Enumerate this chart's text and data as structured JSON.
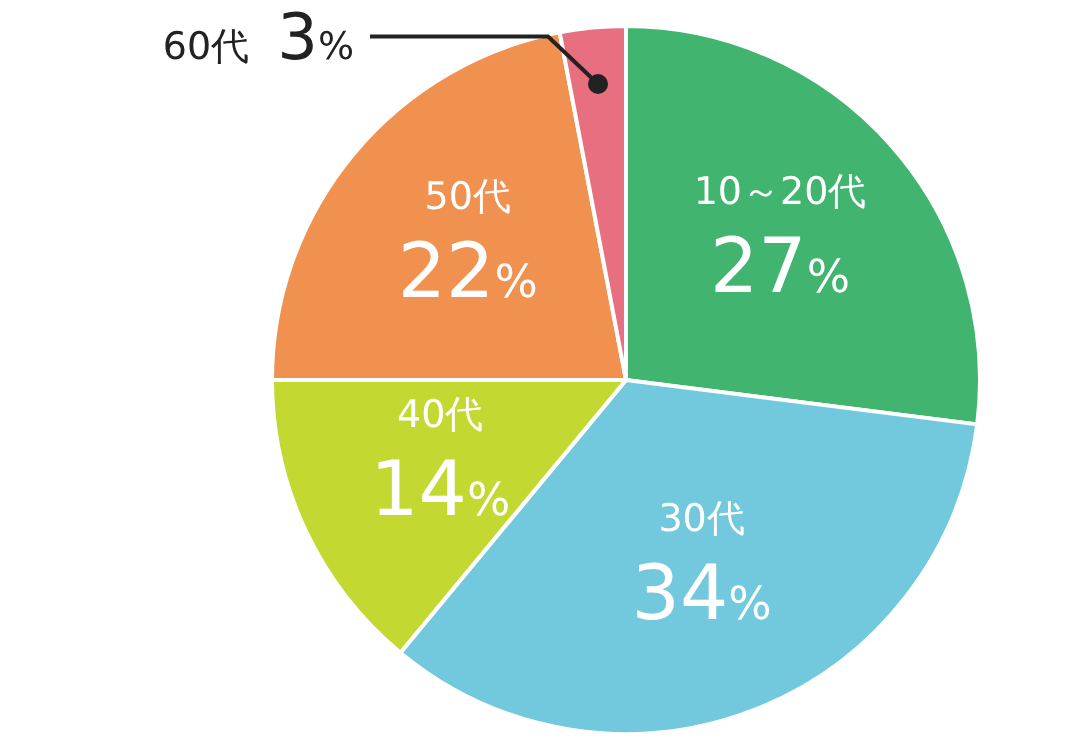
{
  "chart_data": {
    "type": "pie",
    "categories": [
      "10～20代",
      "30代",
      "40代",
      "50代",
      "60代"
    ],
    "values": [
      27,
      34,
      14,
      22,
      3
    ],
    "value_labels": [
      "27%",
      "34%",
      "14%",
      "22%",
      "3%"
    ],
    "colors": [
      "#41b46f",
      "#72c8dc",
      "#c3d932",
      "#f0914f",
      "#e86f80"
    ],
    "legend": false
  }
}
